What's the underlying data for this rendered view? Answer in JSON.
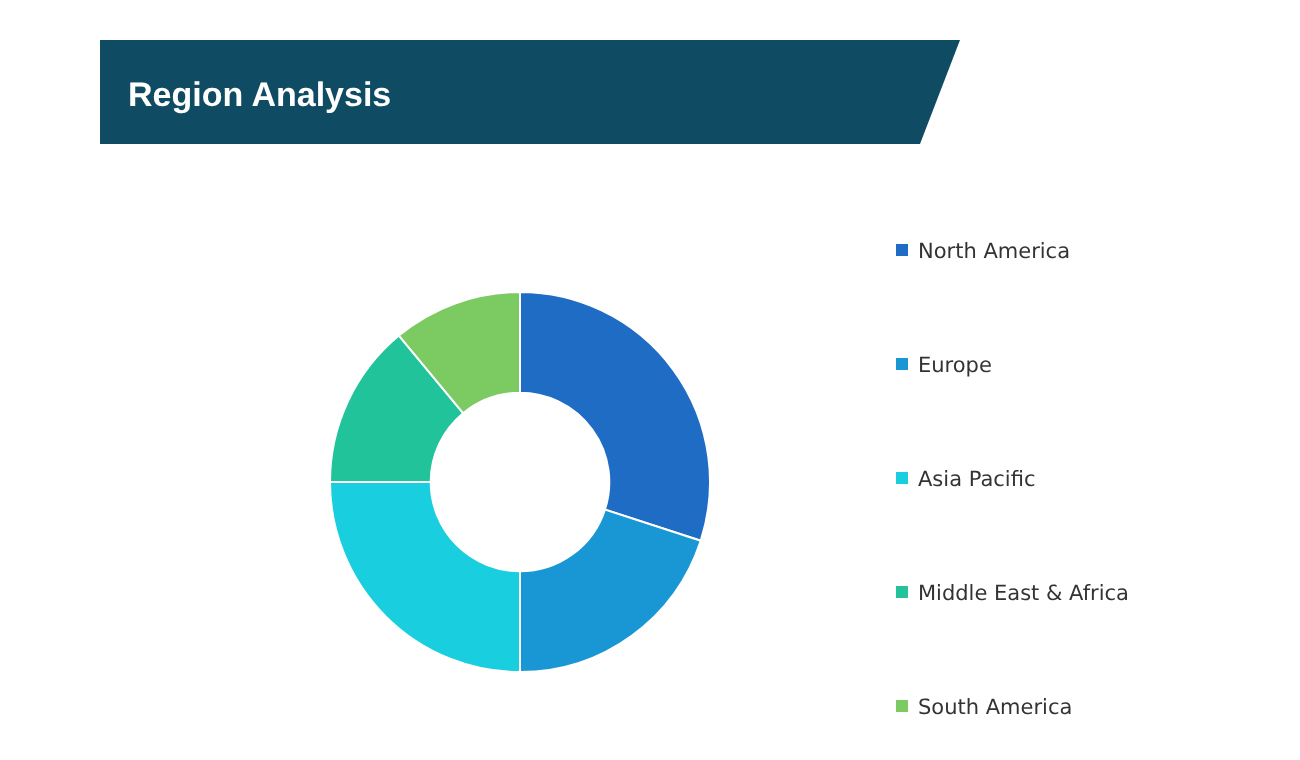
{
  "chart_data": {
    "type": "donut",
    "title": "Region Analysis",
    "categories": [
      "North America",
      "Europe",
      "Asia Pacific",
      "Middle East & Africa",
      "South America"
    ],
    "values": [
      30,
      20,
      25,
      14,
      11
    ],
    "colors": [
      "#1e6cc4",
      "#1997d4",
      "#19cede",
      "#20c39a",
      "#7ccb62"
    ],
    "legend": "right"
  }
}
